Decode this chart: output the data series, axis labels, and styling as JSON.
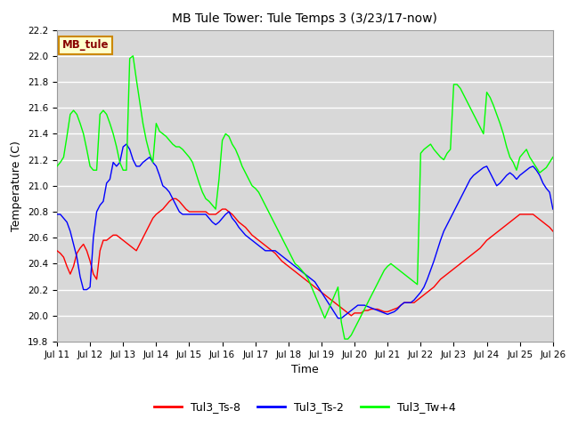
{
  "title": "MB Tule Tower: Tule Temps 3 (3/23/17-now)",
  "xlabel": "Time",
  "ylabel": "Temperature (C)",
  "ylim": [
    19.8,
    22.2
  ],
  "xlim": [
    0,
    15
  ],
  "bg_color": "#d8d8d8",
  "fig_bg": "#ffffff",
  "legend_label": "MB_tule",
  "legend_bg": "#ffffcc",
  "legend_border": "#cc8800",
  "legend_text_color": "#880000",
  "xtick_labels": [
    "Jul 11",
    "Jul 12",
    "Jul 13",
    "Jul 14",
    "Jul 15",
    "Jul 16",
    "Jul 17",
    "Jul 18",
    "Jul 19",
    "Jul 20",
    "Jul 21",
    "Jul 22",
    "Jul 23",
    "Jul 24",
    "Jul 25",
    "Jul 26"
  ],
  "red_x": [
    0,
    0.1,
    0.2,
    0.3,
    0.4,
    0.5,
    0.6,
    0.7,
    0.8,
    0.9,
    1.0,
    1.1,
    1.2,
    1.3,
    1.4,
    1.5,
    1.6,
    1.7,
    1.8,
    1.9,
    2.0,
    2.1,
    2.2,
    2.3,
    2.4,
    2.5,
    2.6,
    2.7,
    2.8,
    2.9,
    3.0,
    3.1,
    3.2,
    3.3,
    3.4,
    3.5,
    3.6,
    3.7,
    3.8,
    3.9,
    4.0,
    4.1,
    4.2,
    4.3,
    4.4,
    4.5,
    4.6,
    4.7,
    4.8,
    4.9,
    5.0,
    5.1,
    5.2,
    5.3,
    5.4,
    5.5,
    5.6,
    5.7,
    5.8,
    5.9,
    6.0,
    6.1,
    6.2,
    6.3,
    6.4,
    6.5,
    6.6,
    6.7,
    6.8,
    6.9,
    7.0,
    7.1,
    7.2,
    7.3,
    7.4,
    7.5,
    7.6,
    7.7,
    7.8,
    7.9,
    8.0,
    8.1,
    8.2,
    8.3,
    8.4,
    8.5,
    8.6,
    8.7,
    8.8,
    8.9,
    9.0,
    9.1,
    9.2,
    9.3,
    9.4,
    9.5,
    9.6,
    9.7,
    9.8,
    9.9,
    10.0,
    10.1,
    10.2,
    10.3,
    10.4,
    10.5,
    10.6,
    10.7,
    10.8,
    10.9,
    11.0,
    11.1,
    11.2,
    11.3,
    11.4,
    11.5,
    11.6,
    11.7,
    11.8,
    11.9,
    12.0,
    12.1,
    12.2,
    12.3,
    12.4,
    12.5,
    12.6,
    12.7,
    12.8,
    12.9,
    13.0,
    13.1,
    13.2,
    13.3,
    13.4,
    13.5,
    13.6,
    13.7,
    13.8,
    13.9,
    14.0,
    14.1,
    14.2,
    14.3,
    14.4,
    14.5,
    14.6,
    14.7,
    14.8,
    14.9,
    15.0
  ],
  "red_y": [
    20.5,
    20.48,
    20.45,
    20.38,
    20.32,
    20.38,
    20.48,
    20.52,
    20.55,
    20.5,
    20.42,
    20.32,
    20.28,
    20.5,
    20.58,
    20.58,
    20.6,
    20.62,
    20.62,
    20.6,
    20.58,
    20.56,
    20.54,
    20.52,
    20.5,
    20.55,
    20.6,
    20.65,
    20.7,
    20.75,
    20.78,
    20.8,
    20.82,
    20.85,
    20.88,
    20.9,
    20.9,
    20.88,
    20.85,
    20.82,
    20.8,
    20.8,
    20.8,
    20.8,
    20.8,
    20.8,
    20.78,
    20.78,
    20.78,
    20.8,
    20.82,
    20.82,
    20.8,
    20.78,
    20.75,
    20.72,
    20.7,
    20.68,
    20.65,
    20.62,
    20.6,
    20.58,
    20.56,
    20.54,
    20.52,
    20.5,
    20.48,
    20.45,
    20.42,
    20.4,
    20.38,
    20.36,
    20.34,
    20.32,
    20.3,
    20.28,
    20.26,
    20.24,
    20.22,
    20.2,
    20.18,
    20.16,
    20.14,
    20.12,
    20.1,
    20.08,
    20.06,
    20.04,
    20.02,
    20.0,
    20.02,
    20.02,
    20.02,
    20.04,
    20.04,
    20.05,
    20.05,
    20.05,
    20.04,
    20.03,
    20.03,
    20.04,
    20.05,
    20.06,
    20.08,
    20.1,
    20.1,
    20.1,
    20.1,
    20.12,
    20.14,
    20.16,
    20.18,
    20.2,
    20.22,
    20.25,
    20.28,
    20.3,
    20.32,
    20.34,
    20.36,
    20.38,
    20.4,
    20.42,
    20.44,
    20.46,
    20.48,
    20.5,
    20.52,
    20.55,
    20.58,
    20.6,
    20.62,
    20.64,
    20.66,
    20.68,
    20.7,
    20.72,
    20.74,
    20.76,
    20.78,
    20.78,
    20.78,
    20.78,
    20.78,
    20.76,
    20.74,
    20.72,
    20.7,
    20.68,
    20.65
  ],
  "blue_x": [
    0,
    0.1,
    0.2,
    0.3,
    0.4,
    0.5,
    0.6,
    0.7,
    0.8,
    0.9,
    1.0,
    1.1,
    1.2,
    1.3,
    1.4,
    1.5,
    1.6,
    1.7,
    1.8,
    1.9,
    2.0,
    2.1,
    2.2,
    2.3,
    2.4,
    2.5,
    2.6,
    2.7,
    2.8,
    2.9,
    3.0,
    3.1,
    3.2,
    3.3,
    3.4,
    3.5,
    3.6,
    3.7,
    3.8,
    3.9,
    4.0,
    4.1,
    4.2,
    4.3,
    4.4,
    4.5,
    4.6,
    4.7,
    4.8,
    4.9,
    5.0,
    5.1,
    5.2,
    5.3,
    5.4,
    5.5,
    5.6,
    5.7,
    5.8,
    5.9,
    6.0,
    6.1,
    6.2,
    6.3,
    6.4,
    6.5,
    6.6,
    6.7,
    6.8,
    6.9,
    7.0,
    7.1,
    7.2,
    7.3,
    7.4,
    7.5,
    7.6,
    7.7,
    7.8,
    7.9,
    8.0,
    8.1,
    8.2,
    8.3,
    8.4,
    8.5,
    8.6,
    8.7,
    8.8,
    8.9,
    9.0,
    9.1,
    9.2,
    9.3,
    9.4,
    9.5,
    9.6,
    9.7,
    9.8,
    9.9,
    10.0,
    10.1,
    10.2,
    10.3,
    10.4,
    10.5,
    10.6,
    10.7,
    10.8,
    10.9,
    11.0,
    11.1,
    11.2,
    11.3,
    11.4,
    11.5,
    11.6,
    11.7,
    11.8,
    11.9,
    12.0,
    12.1,
    12.2,
    12.3,
    12.4,
    12.5,
    12.6,
    12.7,
    12.8,
    12.9,
    13.0,
    13.1,
    13.2,
    13.3,
    13.4,
    13.5,
    13.6,
    13.7,
    13.8,
    13.9,
    14.0,
    14.1,
    14.2,
    14.3,
    14.4,
    14.5,
    14.6,
    14.7,
    14.8,
    14.9,
    15.0
  ],
  "blue_y": [
    20.78,
    20.78,
    20.75,
    20.72,
    20.65,
    20.55,
    20.45,
    20.3,
    20.2,
    20.2,
    20.22,
    20.6,
    20.8,
    20.85,
    20.88,
    21.02,
    21.05,
    21.18,
    21.15,
    21.18,
    21.3,
    21.32,
    21.28,
    21.2,
    21.15,
    21.15,
    21.18,
    21.2,
    21.22,
    21.18,
    21.15,
    21.08,
    21.0,
    20.98,
    20.95,
    20.9,
    20.85,
    20.8,
    20.78,
    20.78,
    20.78,
    20.78,
    20.78,
    20.78,
    20.78,
    20.78,
    20.75,
    20.72,
    20.7,
    20.72,
    20.75,
    20.78,
    20.8,
    20.75,
    20.72,
    20.68,
    20.65,
    20.62,
    20.6,
    20.58,
    20.56,
    20.54,
    20.52,
    20.5,
    20.5,
    20.5,
    20.5,
    20.48,
    20.46,
    20.44,
    20.42,
    20.4,
    20.38,
    20.36,
    20.34,
    20.32,
    20.3,
    20.28,
    20.26,
    20.22,
    20.18,
    20.14,
    20.1,
    20.06,
    20.02,
    19.98,
    19.98,
    20.0,
    20.02,
    20.04,
    20.06,
    20.08,
    20.08,
    20.08,
    20.07,
    20.06,
    20.05,
    20.04,
    20.03,
    20.02,
    20.01,
    20.02,
    20.03,
    20.05,
    20.08,
    20.1,
    20.1,
    20.1,
    20.12,
    20.15,
    20.18,
    20.22,
    20.28,
    20.35,
    20.42,
    20.5,
    20.58,
    20.65,
    20.7,
    20.75,
    20.8,
    20.85,
    20.9,
    20.95,
    21.0,
    21.05,
    21.08,
    21.1,
    21.12,
    21.14,
    21.15,
    21.1,
    21.05,
    21.0,
    21.02,
    21.05,
    21.08,
    21.1,
    21.08,
    21.05,
    21.08,
    21.1,
    21.12,
    21.14,
    21.15,
    21.12,
    21.08,
    21.02,
    20.98,
    20.95,
    20.82
  ],
  "green_x": [
    0,
    0.1,
    0.2,
    0.3,
    0.4,
    0.5,
    0.6,
    0.7,
    0.8,
    0.9,
    1.0,
    1.1,
    1.2,
    1.3,
    1.4,
    1.5,
    1.6,
    1.7,
    1.8,
    1.9,
    2.0,
    2.1,
    2.2,
    2.3,
    2.4,
    2.5,
    2.6,
    2.7,
    2.8,
    2.9,
    3.0,
    3.1,
    3.2,
    3.3,
    3.4,
    3.5,
    3.6,
    3.7,
    3.8,
    3.9,
    4.0,
    4.1,
    4.2,
    4.3,
    4.4,
    4.5,
    4.6,
    4.7,
    4.8,
    4.9,
    5.0,
    5.1,
    5.2,
    5.3,
    5.4,
    5.5,
    5.6,
    5.7,
    5.8,
    5.9,
    6.0,
    6.1,
    6.2,
    6.3,
    6.4,
    6.5,
    6.6,
    6.7,
    6.8,
    6.9,
    7.0,
    7.1,
    7.2,
    7.3,
    7.4,
    7.5,
    7.6,
    7.7,
    7.8,
    7.9,
    8.0,
    8.1,
    8.2,
    8.3,
    8.4,
    8.5,
    8.6,
    8.7,
    8.8,
    8.9,
    9.0,
    9.1,
    9.2,
    9.3,
    9.4,
    9.5,
    9.6,
    9.7,
    9.8,
    9.9,
    10.0,
    10.1,
    10.2,
    10.3,
    10.4,
    10.5,
    10.6,
    10.7,
    10.8,
    10.9,
    11.0,
    11.1,
    11.2,
    11.3,
    11.4,
    11.5,
    11.6,
    11.7,
    11.8,
    11.9,
    12.0,
    12.1,
    12.2,
    12.3,
    12.4,
    12.5,
    12.6,
    12.7,
    12.8,
    12.9,
    13.0,
    13.1,
    13.2,
    13.3,
    13.4,
    13.5,
    13.6,
    13.7,
    13.8,
    13.9,
    14.0,
    14.1,
    14.2,
    14.3,
    14.4,
    14.5,
    14.6,
    14.7,
    14.8,
    14.9,
    15.0
  ],
  "green_y": [
    21.15,
    21.18,
    21.22,
    21.38,
    21.55,
    21.58,
    21.55,
    21.48,
    21.4,
    21.28,
    21.15,
    21.12,
    21.12,
    21.55,
    21.58,
    21.55,
    21.48,
    21.4,
    21.3,
    21.18,
    21.12,
    21.12,
    21.98,
    22.0,
    21.82,
    21.65,
    21.48,
    21.35,
    21.25,
    21.18,
    21.48,
    21.42,
    21.4,
    21.38,
    21.35,
    21.32,
    21.3,
    21.3,
    21.28,
    21.25,
    21.22,
    21.18,
    21.1,
    21.02,
    20.95,
    20.9,
    20.88,
    20.85,
    20.82,
    21.05,
    21.35,
    21.4,
    21.38,
    21.32,
    21.28,
    21.22,
    21.15,
    21.1,
    21.05,
    21.0,
    20.98,
    20.95,
    20.9,
    20.85,
    20.8,
    20.75,
    20.7,
    20.65,
    20.6,
    20.55,
    20.5,
    20.45,
    20.4,
    20.38,
    20.35,
    20.32,
    20.28,
    20.22,
    20.16,
    20.1,
    20.04,
    19.98,
    20.04,
    20.1,
    20.16,
    20.22,
    19.95,
    19.82,
    19.82,
    19.85,
    19.9,
    19.95,
    20.0,
    20.05,
    20.1,
    20.15,
    20.2,
    20.25,
    20.3,
    20.35,
    20.38,
    20.4,
    20.38,
    20.36,
    20.34,
    20.32,
    20.3,
    20.28,
    20.26,
    20.24,
    21.25,
    21.28,
    21.3,
    21.32,
    21.28,
    21.25,
    21.22,
    21.2,
    21.25,
    21.28,
    21.78,
    21.78,
    21.75,
    21.7,
    21.65,
    21.6,
    21.55,
    21.5,
    21.45,
    21.4,
    21.72,
    21.68,
    21.62,
    21.55,
    21.48,
    21.4,
    21.3,
    21.22,
    21.18,
    21.12,
    21.22,
    21.25,
    21.28,
    21.22,
    21.18,
    21.14,
    21.1,
    21.12,
    21.14,
    21.18,
    21.22
  ]
}
